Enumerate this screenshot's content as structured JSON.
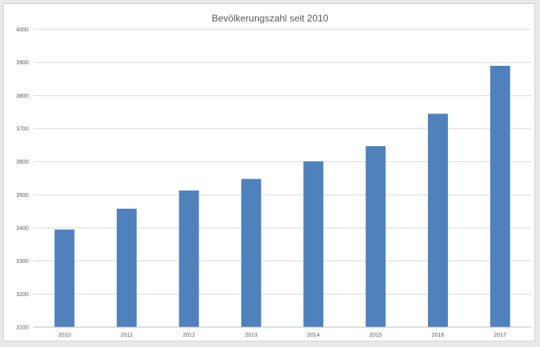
{
  "chart_data": {
    "type": "bar",
    "title": "Bevölkerungszahl seit 2010",
    "xlabel": "",
    "ylabel": "",
    "categories": [
      "2010",
      "2011",
      "2012",
      "2013",
      "2014",
      "2015",
      "2016",
      "2017"
    ],
    "values": [
      3395,
      3458,
      3513,
      3548,
      3601,
      3647,
      3745,
      3890
    ],
    "ylim": [
      3100,
      4000
    ],
    "yticks": [
      "3100",
      "3200",
      "3300",
      "3400",
      "3500",
      "3600",
      "3700",
      "3800",
      "3900",
      "4000"
    ],
    "grid": true,
    "legend": "none",
    "colors": {
      "bar": "#4f81bd",
      "grid": "#d9d9d9",
      "axis": "#bfbfbf",
      "text": "#595959"
    }
  }
}
